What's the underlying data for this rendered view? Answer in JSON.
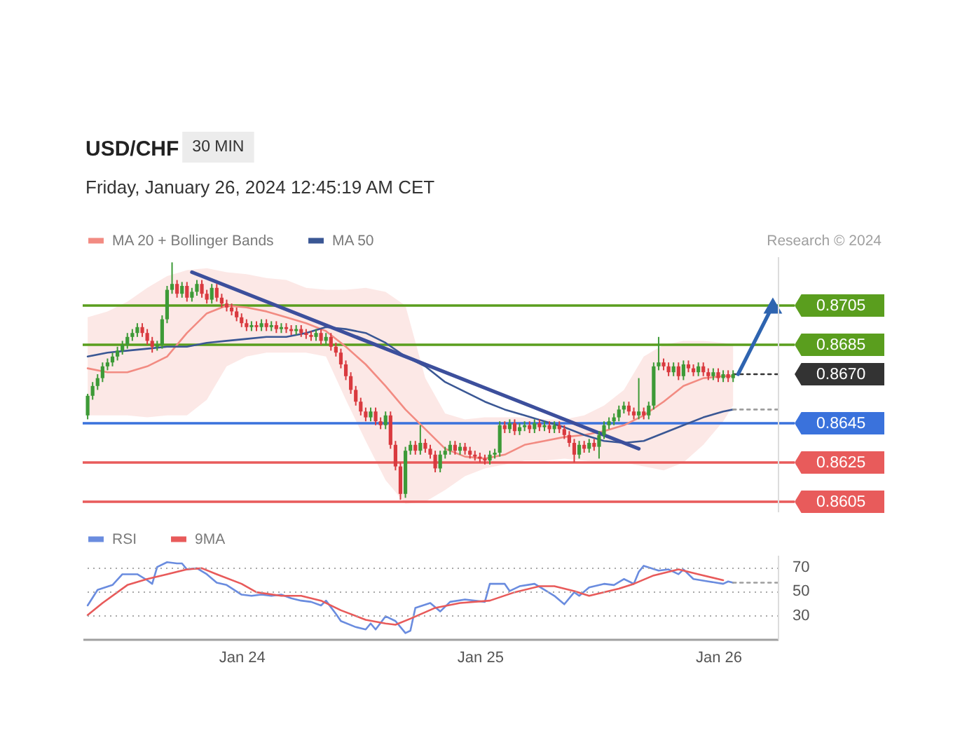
{
  "chart_data": [
    {
      "type": "candlestick",
      "title": "USD/CHF",
      "subtitle": "Friday, January 26, 2024 12:45:19 AM CET",
      "annotations": [
        "30 MIN",
        "Research © 2024"
      ],
      "x": [
        "2024-01-23T08:30",
        "2024-01-23T09:00",
        "2024-01-23T09:30",
        "2024-01-23T10:00",
        "2024-01-23T10:30",
        "2024-01-23T11:00",
        "2024-01-23T11:30",
        "2024-01-23T12:00",
        "2024-01-23T12:30",
        "2024-01-23T13:00",
        "2024-01-23T13:30",
        "2024-01-23T14:00",
        "2024-01-23T14:30",
        "2024-01-23T15:00",
        "2024-01-23T15:30",
        "2024-01-23T16:00",
        "2024-01-23T16:30",
        "2024-01-23T17:00",
        "2024-01-23T17:30",
        "2024-01-23T18:00",
        "2024-01-23T18:30",
        "2024-01-23T19:00",
        "2024-01-23T19:30",
        "2024-01-23T20:00",
        "2024-01-23T20:30",
        "2024-01-23T21:00",
        "2024-01-23T21:30",
        "2024-01-23T22:00",
        "2024-01-23T22:30",
        "2024-01-23T23:00",
        "2024-01-23T23:30",
        "2024-01-24T00:00",
        "2024-01-24T00:30",
        "2024-01-24T01:00",
        "2024-01-24T01:30",
        "2024-01-24T02:00",
        "2024-01-24T02:30",
        "2024-01-24T03:00",
        "2024-01-24T03:30",
        "2024-01-24T04:00",
        "2024-01-24T04:30",
        "2024-01-24T05:00",
        "2024-01-24T05:30",
        "2024-01-24T06:00",
        "2024-01-24T06:30",
        "2024-01-24T07:00",
        "2024-01-24T07:30",
        "2024-01-24T08:00",
        "2024-01-24T08:30",
        "2024-01-24T09:00",
        "2024-01-24T09:30",
        "2024-01-24T10:00",
        "2024-01-24T10:30",
        "2024-01-24T11:00",
        "2024-01-24T11:30",
        "2024-01-24T12:00",
        "2024-01-24T12:30",
        "2024-01-24T13:00",
        "2024-01-24T13:30",
        "2024-01-24T14:00",
        "2024-01-24T14:30",
        "2024-01-24T15:00",
        "2024-01-24T15:30",
        "2024-01-24T16:00",
        "2024-01-24T16:30",
        "2024-01-24T17:00",
        "2024-01-24T17:30",
        "2024-01-24T18:00",
        "2024-01-24T18:30",
        "2024-01-24T19:00",
        "2024-01-24T19:30",
        "2024-01-24T20:00",
        "2024-01-24T20:30",
        "2024-01-24T21:00",
        "2024-01-24T21:30",
        "2024-01-24T22:00",
        "2024-01-24T22:30",
        "2024-01-24T23:00",
        "2024-01-24T23:30",
        "2024-01-25T00:00",
        "2024-01-25T00:30",
        "2024-01-25T01:00",
        "2024-01-25T01:30",
        "2024-01-25T02:00",
        "2024-01-25T02:30",
        "2024-01-25T03:00",
        "2024-01-25T03:30",
        "2024-01-25T04:00",
        "2024-01-25T04:30",
        "2024-01-25T05:00",
        "2024-01-25T05:30",
        "2024-01-25T06:00",
        "2024-01-25T06:30",
        "2024-01-25T07:00",
        "2024-01-25T07:30",
        "2024-01-25T08:00",
        "2024-01-25T08:30",
        "2024-01-25T09:00",
        "2024-01-25T09:30",
        "2024-01-25T10:00",
        "2024-01-25T10:30",
        "2024-01-25T11:00",
        "2024-01-25T11:30",
        "2024-01-25T12:00",
        "2024-01-25T12:30",
        "2024-01-25T13:00",
        "2024-01-25T13:30",
        "2024-01-25T14:00",
        "2024-01-25T14:30",
        "2024-01-25T15:00",
        "2024-01-25T15:30",
        "2024-01-25T16:00",
        "2024-01-25T16:30",
        "2024-01-25T17:00",
        "2024-01-25T17:30",
        "2024-01-25T18:00",
        "2024-01-25T18:30",
        "2024-01-25T19:00",
        "2024-01-25T19:30",
        "2024-01-25T20:00",
        "2024-01-25T20:30",
        "2024-01-25T21:00",
        "2024-01-25T21:30",
        "2024-01-25T22:00",
        "2024-01-25T22:30",
        "2024-01-25T23:00",
        "2024-01-25T23:30",
        "2024-01-26T00:00",
        "2024-01-26T00:30",
        "2024-01-26T01:00",
        "2024-01-26T01:30"
      ],
      "ohlc": [
        [
          0.8649,
          0.866,
          0.8647,
          0.8659
        ],
        [
          0.8659,
          0.8666,
          0.8657,
          0.8664
        ],
        [
          0.8664,
          0.867,
          0.8662,
          0.8668
        ],
        [
          0.8668,
          0.8676,
          0.8666,
          0.8674
        ],
        [
          0.8674,
          0.8678,
          0.8672,
          0.8676
        ],
        [
          0.8676,
          0.8681,
          0.8674,
          0.8679
        ],
        [
          0.8679,
          0.8684,
          0.8677,
          0.8682
        ],
        [
          0.8682,
          0.8687,
          0.868,
          0.8685
        ],
        [
          0.8685,
          0.8691,
          0.8683,
          0.8689
        ],
        [
          0.8689,
          0.8693,
          0.8687,
          0.8691
        ],
        [
          0.8691,
          0.8696,
          0.8689,
          0.8694
        ],
        [
          0.8694,
          0.8696,
          0.8689,
          0.8691
        ],
        [
          0.8691,
          0.8693,
          0.8685,
          0.8687
        ],
        [
          0.8687,
          0.8689,
          0.8681,
          0.8684
        ],
        [
          0.8684,
          0.8687,
          0.8682,
          0.8685
        ],
        [
          0.8685,
          0.87,
          0.8683,
          0.8698
        ],
        [
          0.8698,
          0.8715,
          0.8696,
          0.8713
        ],
        [
          0.8713,
          0.8727,
          0.8711,
          0.8716
        ],
        [
          0.8716,
          0.8718,
          0.8709,
          0.8711
        ],
        [
          0.8711,
          0.8717,
          0.8709,
          0.8715
        ],
        [
          0.8715,
          0.8717,
          0.8707,
          0.8709
        ],
        [
          0.8709,
          0.8714,
          0.8707,
          0.8712
        ],
        [
          0.8712,
          0.8718,
          0.871,
          0.8716
        ],
        [
          0.8716,
          0.8718,
          0.8709,
          0.8711
        ],
        [
          0.8711,
          0.8713,
          0.8706,
          0.8708
        ],
        [
          0.8708,
          0.8716,
          0.8706,
          0.8714
        ],
        [
          0.8714,
          0.8716,
          0.8707,
          0.8709
        ],
        [
          0.8709,
          0.8711,
          0.8704,
          0.8706
        ],
        [
          0.8706,
          0.8708,
          0.8702,
          0.8704
        ],
        [
          0.8704,
          0.8706,
          0.87,
          0.8702
        ],
        [
          0.8702,
          0.8704,
          0.8697,
          0.8699
        ],
        [
          0.8699,
          0.8701,
          0.8694,
          0.8696
        ],
        [
          0.8696,
          0.8698,
          0.8692,
          0.8694
        ],
        [
          0.8694,
          0.8697,
          0.8692,
          0.8695
        ],
        [
          0.8695,
          0.8697,
          0.8692,
          0.8694
        ],
        [
          0.8694,
          0.8698,
          0.8692,
          0.8696
        ],
        [
          0.8696,
          0.8698,
          0.8692,
          0.8694
        ],
        [
          0.8694,
          0.8697,
          0.8692,
          0.8695
        ],
        [
          0.8695,
          0.8697,
          0.8691,
          0.8693
        ],
        [
          0.8693,
          0.8696,
          0.8691,
          0.8694
        ],
        [
          0.8694,
          0.8696,
          0.8691,
          0.8693
        ],
        [
          0.8693,
          0.8695,
          0.869,
          0.8692
        ],
        [
          0.8692,
          0.8695,
          0.869,
          0.8693
        ],
        [
          0.8693,
          0.8695,
          0.8689,
          0.8691
        ],
        [
          0.8691,
          0.8693,
          0.8688,
          0.869
        ],
        [
          0.869,
          0.8692,
          0.8687,
          0.8689
        ],
        [
          0.8689,
          0.8693,
          0.8687,
          0.8691
        ],
        [
          0.8691,
          0.8693,
          0.8685,
          0.8687
        ],
        [
          0.8687,
          0.8691,
          0.8685,
          0.8689
        ],
        [
          0.8689,
          0.8691,
          0.8682,
          0.8684
        ],
        [
          0.8684,
          0.8686,
          0.8679,
          0.8681
        ],
        [
          0.8681,
          0.8683,
          0.8673,
          0.8675
        ],
        [
          0.8675,
          0.8677,
          0.8667,
          0.8669
        ],
        [
          0.8669,
          0.8671,
          0.866,
          0.8662
        ],
        [
          0.8662,
          0.8664,
          0.8654,
          0.8656
        ],
        [
          0.8656,
          0.8658,
          0.8649,
          0.8651
        ],
        [
          0.8651,
          0.8653,
          0.8646,
          0.8648
        ],
        [
          0.8648,
          0.8653,
          0.8646,
          0.8651
        ],
        [
          0.8651,
          0.8653,
          0.8644,
          0.8646
        ],
        [
          0.8646,
          0.8648,
          0.8642,
          0.8644
        ],
        [
          0.8644,
          0.8651,
          0.8642,
          0.8649
        ],
        [
          0.8649,
          0.8651,
          0.8632,
          0.8634
        ],
        [
          0.8634,
          0.8636,
          0.8621,
          0.8623
        ],
        [
          0.8623,
          0.8625,
          0.8606,
          0.8609
        ],
        [
          0.8609,
          0.8633,
          0.8607,
          0.8631
        ],
        [
          0.8631,
          0.8636,
          0.8629,
          0.8634
        ],
        [
          0.8634,
          0.8636,
          0.8629,
          0.8631
        ],
        [
          0.8631,
          0.8644,
          0.8629,
          0.8635
        ],
        [
          0.8635,
          0.8637,
          0.863,
          0.8632
        ],
        [
          0.8632,
          0.8634,
          0.8627,
          0.8629
        ],
        [
          0.8629,
          0.8631,
          0.862,
          0.8622
        ],
        [
          0.8622,
          0.8631,
          0.862,
          0.8629
        ],
        [
          0.8629,
          0.8633,
          0.8627,
          0.8631
        ],
        [
          0.8631,
          0.8636,
          0.8629,
          0.8634
        ],
        [
          0.8634,
          0.8636,
          0.8629,
          0.8631
        ],
        [
          0.8631,
          0.8635,
          0.8629,
          0.8633
        ],
        [
          0.8633,
          0.8635,
          0.8629,
          0.8631
        ],
        [
          0.8631,
          0.8633,
          0.8627,
          0.8629
        ],
        [
          0.8629,
          0.8631,
          0.8626,
          0.8628
        ],
        [
          0.8628,
          0.863,
          0.8625,
          0.8627
        ],
        [
          0.8627,
          0.8629,
          0.8624,
          0.8626
        ],
        [
          0.8626,
          0.8631,
          0.8624,
          0.8629
        ],
        [
          0.8629,
          0.8632,
          0.8627,
          0.863
        ],
        [
          0.863,
          0.8646,
          0.8628,
          0.8644
        ],
        [
          0.8644,
          0.8646,
          0.864,
          0.8642
        ],
        [
          0.8642,
          0.8647,
          0.864,
          0.8645
        ],
        [
          0.8645,
          0.8647,
          0.8639,
          0.8641
        ],
        [
          0.8641,
          0.8645,
          0.8639,
          0.8643
        ],
        [
          0.8643,
          0.8646,
          0.8641,
          0.8644
        ],
        [
          0.8644,
          0.8646,
          0.864,
          0.8642
        ],
        [
          0.8642,
          0.8647,
          0.864,
          0.8645
        ],
        [
          0.8645,
          0.8647,
          0.8641,
          0.8643
        ],
        [
          0.8643,
          0.8646,
          0.8641,
          0.8644
        ],
        [
          0.8644,
          0.8646,
          0.864,
          0.8642
        ],
        [
          0.8642,
          0.8646,
          0.864,
          0.8644
        ],
        [
          0.8644,
          0.8646,
          0.864,
          0.8642
        ],
        [
          0.8642,
          0.8644,
          0.8637,
          0.8639
        ],
        [
          0.8639,
          0.8641,
          0.8633,
          0.8635
        ],
        [
          0.8635,
          0.8637,
          0.8625,
          0.8629
        ],
        [
          0.8629,
          0.8636,
          0.8627,
          0.8634
        ],
        [
          0.8634,
          0.8636,
          0.863,
          0.8632
        ],
        [
          0.8632,
          0.8637,
          0.863,
          0.8635
        ],
        [
          0.8635,
          0.8637,
          0.8631,
          0.8633
        ],
        [
          0.8633,
          0.8641,
          0.8627,
          0.8639
        ],
        [
          0.8639,
          0.8646,
          0.8637,
          0.8644
        ],
        [
          0.8644,
          0.8648,
          0.8642,
          0.8646
        ],
        [
          0.8646,
          0.865,
          0.8644,
          0.8648
        ],
        [
          0.8648,
          0.8654,
          0.8646,
          0.8652
        ],
        [
          0.8652,
          0.8656,
          0.865,
          0.8654
        ],
        [
          0.8654,
          0.8656,
          0.8649,
          0.8651
        ],
        [
          0.8651,
          0.8653,
          0.8647,
          0.8649
        ],
        [
          0.8649,
          0.8668,
          0.8647,
          0.8651
        ],
        [
          0.8651,
          0.8653,
          0.8647,
          0.8649
        ],
        [
          0.8649,
          0.8656,
          0.8647,
          0.8654
        ],
        [
          0.8654,
          0.8676,
          0.8652,
          0.8674
        ],
        [
          0.8674,
          0.8689,
          0.8672,
          0.8676
        ],
        [
          0.8676,
          0.8678,
          0.8672,
          0.8674
        ],
        [
          0.8674,
          0.8676,
          0.8669,
          0.8671
        ],
        [
          0.8671,
          0.8676,
          0.8669,
          0.8674
        ],
        [
          0.8674,
          0.8676,
          0.8667,
          0.8669
        ],
        [
          0.8669,
          0.8677,
          0.8667,
          0.8675
        ],
        [
          0.8675,
          0.8677,
          0.8671,
          0.8673
        ],
        [
          0.8673,
          0.8675,
          0.8669,
          0.8671
        ],
        [
          0.8671,
          0.8676,
          0.8669,
          0.8674
        ],
        [
          0.8674,
          0.8676,
          0.8669,
          0.8671
        ],
        [
          0.8671,
          0.8673,
          0.8667,
          0.8669
        ],
        [
          0.8669,
          0.8673,
          0.8667,
          0.8671
        ],
        [
          0.8671,
          0.8673,
          0.8666,
          0.8668
        ],
        [
          0.8668,
          0.8672,
          0.8666,
          0.867
        ],
        [
          0.867,
          0.8672,
          0.8666,
          0.8668
        ],
        [
          0.8668,
          0.8672,
          0.8666,
          0.867
        ]
      ],
      "colors": [
        "#3d9a37",
        "#3d9a37",
        "#3d9a37",
        "#3d9a37",
        "#3d9a37",
        "#3d9a37",
        "#3d9a37",
        "#3d9a37",
        "#3d9a37",
        "#3d9a37",
        "#3d9a37",
        "#d93a3f",
        "#d93a3f",
        "#d93a3f",
        "#3d9a37",
        "#3d9a37",
        "#3d9a37",
        "#3d9a37",
        "#d93a3f",
        "#3d9a37",
        "#d93a3f",
        "#3d9a37",
        "#3d9a37",
        "#d93a3f",
        "#d93a3f",
        "#3d9a37",
        "#d93a3f",
        "#d93a3f",
        "#d93a3f",
        "#d93a3f",
        "#d93a3f",
        "#d93a3f",
        "#d93a3f",
        "#3d9a37",
        "#d93a3f",
        "#3d9a37",
        "#d93a3f",
        "#3d9a37",
        "#d93a3f",
        "#3d9a37",
        "#d93a3f",
        "#d93a3f",
        "#3d9a37",
        "#d93a3f",
        "#d93a3f",
        "#d93a3f",
        "#3d9a37",
        "#d93a3f",
        "#3d9a37",
        "#d93a3f",
        "#d93a3f",
        "#d93a3f",
        "#d93a3f",
        "#d93a3f",
        "#d93a3f",
        "#d93a3f",
        "#d93a3f",
        "#3d9a37",
        "#d93a3f",
        "#d93a3f",
        "#3d9a37",
        "#d93a3f",
        "#d93a3f",
        "#d93a3f",
        "#3d9a37",
        "#3d9a37",
        "#d93a3f",
        "#3d9a37",
        "#d93a3f",
        "#d93a3f",
        "#d93a3f",
        "#3d9a37",
        "#3d9a37",
        "#3d9a37",
        "#d93a3f",
        "#3d9a37",
        "#d93a3f",
        "#d93a3f",
        "#d93a3f",
        "#d93a3f",
        "#d93a3f",
        "#3d9a37",
        "#3d9a37",
        "#3d9a37",
        "#d93a3f",
        "#3d9a37",
        "#d93a3f",
        "#3d9a37",
        "#3d9a37",
        "#d93a3f",
        "#3d9a37",
        "#d93a3f",
        "#3d9a37",
        "#d93a3f",
        "#3d9a37",
        "#d93a3f",
        "#d93a3f",
        "#d93a3f",
        "#d93a3f",
        "#3d9a37",
        "#d93a3f",
        "#3d9a37",
        "#d93a3f",
        "#3d9a37",
        "#3d9a37",
        "#3d9a37",
        "#3d9a37",
        "#3d9a37",
        "#3d9a37",
        "#d93a3f",
        "#d93a3f",
        "#3d9a37",
        "#d93a3f",
        "#3d9a37",
        "#3d9a37",
        "#3d9a37",
        "#d93a3f",
        "#d93a3f",
        "#3d9a37",
        "#d93a3f",
        "#3d9a37",
        "#d93a3f",
        "#d93a3f",
        "#3d9a37",
        "#d93a3f",
        "#d93a3f",
        "#3d9a37",
        "#d93a3f",
        "#3d9a37",
        "#d93a3f",
        "#3d9a37"
      ],
      "series": [
        {
          "name": "MA 20 + Bollinger Bands",
          "type": "line",
          "color": "#f28b82",
          "x": [
            "2024-01-23T08:30",
            "2024-01-23T10:30",
            "2024-01-23T12:30",
            "2024-01-23T14:30",
            "2024-01-23T16:30",
            "2024-01-23T18:30",
            "2024-01-23T20:30",
            "2024-01-23T22:30",
            "2024-01-24T00:30",
            "2024-01-24T02:30",
            "2024-01-24T04:30",
            "2024-01-24T06:30",
            "2024-01-24T08:30",
            "2024-01-24T10:30",
            "2024-01-24T12:30",
            "2024-01-24T14:30",
            "2024-01-24T16:30",
            "2024-01-24T18:30",
            "2024-01-24T20:30",
            "2024-01-24T22:30",
            "2024-01-25T00:30",
            "2024-01-25T02:30",
            "2024-01-25T04:30",
            "2024-01-25T06:30",
            "2024-01-25T08:30",
            "2024-01-25T10:30",
            "2024-01-25T12:30",
            "2024-01-25T14:30",
            "2024-01-25T16:30",
            "2024-01-25T18:30",
            "2024-01-25T20:30",
            "2024-01-25T22:30",
            "2024-01-26T00:30",
            "2024-01-26T01:30"
          ],
          "values": [
            0.8673,
            0.8671,
            0.8671,
            0.8674,
            0.8679,
            0.8691,
            0.8701,
            0.8705,
            0.8704,
            0.8702,
            0.8699,
            0.8696,
            0.8692,
            0.8684,
            0.8675,
            0.8664,
            0.8652,
            0.8642,
            0.8632,
            0.8628,
            0.8627,
            0.8629,
            0.8634,
            0.8636,
            0.8638,
            0.8639,
            0.8641,
            0.8644,
            0.8649,
            0.8656,
            0.8664,
            0.8668,
            0.8669,
            0.8669
          ],
          "lower": [
            0.8649,
            0.8649,
            0.8649,
            0.8648,
            0.8649,
            0.8649,
            0.8657,
            0.8674,
            0.8679,
            0.8681,
            0.8681,
            0.8681,
            0.8679,
            0.8657,
            0.8636,
            0.8616,
            0.8604,
            0.8605,
            0.8611,
            0.8618,
            0.8622,
            0.8624,
            0.8626,
            0.8626,
            0.8627,
            0.8626,
            0.8625,
            0.8625,
            0.8623,
            0.8621,
            0.8625,
            0.8634,
            0.8646,
            0.8654
          ],
          "upper": [
            0.8699,
            0.8702,
            0.8707,
            0.8714,
            0.872,
            0.8723,
            0.8724,
            0.8722,
            0.8721,
            0.8719,
            0.8718,
            0.8714,
            0.8713,
            0.8713,
            0.8714,
            0.8712,
            0.8705,
            0.8668,
            0.865,
            0.8647,
            0.8648,
            0.8648,
            0.8648,
            0.8647,
            0.8647,
            0.8649,
            0.8654,
            0.8662,
            0.8679,
            0.8685,
            0.8687,
            0.8687,
            0.8686,
            0.8685
          ]
        },
        {
          "name": "MA 50",
          "type": "line",
          "color": "#3a5794",
          "x": [
            "2024-01-23T08:30",
            "2024-01-23T10:30",
            "2024-01-23T12:30",
            "2024-01-23T14:30",
            "2024-01-23T16:30",
            "2024-01-23T18:30",
            "2024-01-23T20:30",
            "2024-01-23T22:30",
            "2024-01-24T00:30",
            "2024-01-24T02:30",
            "2024-01-24T04:30",
            "2024-01-24T06:30",
            "2024-01-24T08:30",
            "2024-01-24T10:30",
            "2024-01-24T12:30",
            "2024-01-24T14:30",
            "2024-01-24T16:30",
            "2024-01-24T18:30",
            "2024-01-24T20:30",
            "2024-01-24T22:30",
            "2024-01-25T00:30",
            "2024-01-25T02:30",
            "2024-01-25T04:30",
            "2024-01-25T06:30",
            "2024-01-25T08:30",
            "2024-01-25T10:30",
            "2024-01-25T12:30",
            "2024-01-25T14:30",
            "2024-01-25T16:30",
            "2024-01-25T18:30",
            "2024-01-25T20:30",
            "2024-01-25T22:30",
            "2024-01-26T00:30",
            "2024-01-26T01:30"
          ],
          "values": [
            0.8679,
            0.8681,
            0.8682,
            0.8683,
            0.8684,
            0.8684,
            0.8686,
            0.8687,
            0.8688,
            0.8689,
            0.8689,
            0.8691,
            0.8694,
            0.8693,
            0.8691,
            0.8686,
            0.8679,
            0.8674,
            0.8666,
            0.8661,
            0.8656,
            0.8652,
            0.8649,
            0.8646,
            0.8643,
            0.8639,
            0.8636,
            0.8635,
            0.8636,
            0.864,
            0.8644,
            0.8648,
            0.8651,
            0.8652
          ]
        },
        {
          "type": "line",
          "color": "#3c4f9c",
          "x": [
            "2024-01-23T19:00",
            "2024-01-25T16:00"
          ],
          "values": [
            0.8722,
            0.8632
          ]
        },
        {
          "type": "line",
          "color": "#333333",
          "line_style": "dotted",
          "x": [
            "2024-01-26T01:30",
            "2024-01-26T06:00"
          ],
          "values": [
            0.867,
            0.867
          ]
        },
        {
          "type": "line",
          "color": "#9e9e9e",
          "line_style": "dotted",
          "x": [
            "2024-01-26T01:30",
            "2024-01-26T06:00"
          ],
          "values": [
            0.8652,
            0.8652
          ]
        },
        {
          "type": "line",
          "color": "#2e64b0",
          "x": [
            "2024-01-26T02:00",
            "2024-01-26T05:30"
          ],
          "values": [
            0.867,
            0.8705
          ]
        },
        {
          "type": "scatter",
          "color": "#2e64b0",
          "x": [
            "2024-01-26T05:30"
          ],
          "values": [
            0.8705
          ],
          "marker": "triangle"
        }
      ],
      "ref_lines": [
        {
          "axis": "y",
          "value": 0.8705,
          "color": "#5a9e1e"
        },
        {
          "axis": "y",
          "value": 0.8685,
          "color": "#5a9e1e"
        },
        {
          "axis": "y",
          "value": 0.8645,
          "color": "#3a72dc"
        },
        {
          "axis": "y",
          "value": 0.8625,
          "color": "#e85b5b"
        },
        {
          "axis": "y",
          "value": 0.8605,
          "color": "#e85b5b"
        }
      ],
      "xlim": [
        "2024-01-23T08:00",
        "2024-01-26T06:00"
      ],
      "ylim": [
        0.86,
        0.873
      ],
      "yticks": [
        0.8605,
        0.8625,
        0.8645,
        {
          "value": 0.867,
          "label": "0.8670"
        },
        0.8685,
        0.8705
      ],
      "tick_labels": "y",
      "legend": "top left"
    },
    {
      "type": "line",
      "series": [
        {
          "name": "RSI",
          "color": "#6a8cdf",
          "axis": "y2",
          "x": [
            "2024-01-23T08:30",
            "2024-01-23T09:30",
            "2024-01-23T11:00",
            "2024-01-23T12:00",
            "2024-01-23T13:30",
            "2024-01-23T14:30",
            "2024-01-23T15:00",
            "2024-01-23T15:30",
            "2024-01-23T16:30",
            "2024-01-23T17:30",
            "2024-01-23T18:00",
            "2024-01-23T18:30",
            "2024-01-23T19:30",
            "2024-01-23T20:30",
            "2024-01-23T21:30",
            "2024-01-23T22:30",
            "2024-01-24T00:00",
            "2024-01-24T01:00",
            "2024-01-24T02:00",
            "2024-01-24T03:00",
            "2024-01-24T04:00",
            "2024-01-24T05:00",
            "2024-01-24T06:00",
            "2024-01-24T07:00",
            "2024-01-24T08:00",
            "2024-01-24T08:30",
            "2024-01-24T09:30",
            "2024-01-24T10:00",
            "2024-01-24T11:30",
            "2024-01-24T12:30",
            "2024-01-24T13:00",
            "2024-01-24T13:30",
            "2024-01-24T14:30",
            "2024-01-24T15:30",
            "2024-01-24T16:30",
            "2024-01-24T17:00",
            "2024-01-24T17:30",
            "2024-01-24T19:00",
            "2024-01-24T20:00",
            "2024-01-24T21:00",
            "2024-01-24T22:30",
            "2024-01-25T00:30",
            "2024-01-25T01:00",
            "2024-01-25T02:30",
            "2024-01-25T03:00",
            "2024-01-25T04:00",
            "2024-01-25T05:30",
            "2024-01-25T06:30",
            "2024-01-25T07:30",
            "2024-01-25T08:30",
            "2024-01-25T09:30",
            "2024-01-25T10:00",
            "2024-01-25T11:00",
            "2024-01-25T12:30",
            "2024-01-25T13:30",
            "2024-01-25T14:30",
            "2024-01-25T15:30",
            "2024-01-25T16:00",
            "2024-01-25T16:30",
            "2024-01-25T18:00",
            "2024-01-25T19:00",
            "2024-01-25T20:00",
            "2024-01-25T20:30",
            "2024-01-25T21:30",
            "2024-01-25T23:00",
            "2024-01-26T00:30",
            "2024-01-26T01:00",
            "2024-01-26T01:30"
          ],
          "values": [
            38,
            51,
            55,
            64,
            64,
            59,
            56,
            70,
            74,
            73,
            73,
            68,
            69,
            64,
            57,
            55,
            47,
            46,
            47,
            46,
            47,
            44,
            42,
            41,
            38,
            42,
            31,
            25,
            20,
            18,
            23,
            18,
            29,
            25,
            15,
            17,
            36,
            40,
            33,
            41,
            43,
            41,
            56,
            56,
            50,
            54,
            56,
            51,
            46,
            39,
            49,
            46,
            53,
            56,
            55,
            60,
            56,
            66,
            71,
            67,
            68,
            64,
            68,
            60,
            58,
            56,
            58,
            57
          ]
        },
        {
          "name": "9MA",
          "color": "#e85a5a",
          "axis": "y2",
          "x": [
            "2024-01-23T08:30",
            "2024-01-23T10:00",
            "2024-01-23T12:30",
            "2024-01-23T14:30",
            "2024-01-23T16:30",
            "2024-01-23T18:30",
            "2024-01-23T20:00",
            "2024-01-23T21:30",
            "2024-01-24T00:00",
            "2024-01-24T01:30",
            "2024-01-24T04:00",
            "2024-01-24T06:00",
            "2024-01-24T08:00",
            "2024-01-24T10:00",
            "2024-01-24T12:30",
            "2024-01-24T14:30",
            "2024-01-24T15:30",
            "2024-01-24T17:00",
            "2024-01-24T19:30",
            "2024-01-24T22:00",
            "2024-01-25T01:00",
            "2024-01-25T03:30",
            "2024-01-25T06:00",
            "2024-01-25T07:30",
            "2024-01-25T09:30",
            "2024-01-25T11:00",
            "2024-01-25T14:00",
            "2024-01-25T15:30",
            "2024-01-25T17:30",
            "2024-01-25T20:00",
            "2024-01-25T22:00",
            "2024-01-26T00:30"
          ],
          "values": [
            30,
            40,
            55,
            60,
            64,
            68,
            69,
            64,
            56,
            49,
            46,
            46,
            42,
            34,
            26,
            23,
            22,
            27,
            36,
            40,
            42,
            49,
            54,
            54,
            50,
            46,
            52,
            56,
            63,
            68,
            64,
            59
          ]
        },
        {
          "type": "line",
          "color": "#9e9e9e",
          "line_style": "dotted",
          "axis": "y2",
          "x": [
            "2024-01-26T01:30",
            "2024-01-26T06:00"
          ],
          "values": [
            57,
            57
          ]
        }
      ],
      "xlim": [
        "2024-01-23T08:00",
        "2024-01-26T06:00"
      ],
      "xticks": [
        {
          "value": "2024-01-24",
          "label": "Jan 24"
        },
        {
          "value": "2024-01-25",
          "label": "Jan 25"
        },
        {
          "value": "2024-01-26",
          "label": "Jan 26"
        }
      ],
      "y2lim": [
        10,
        80
      ],
      "y2ticks": [
        30,
        50,
        70
      ],
      "grid": "y",
      "legend": "top left"
    }
  ]
}
